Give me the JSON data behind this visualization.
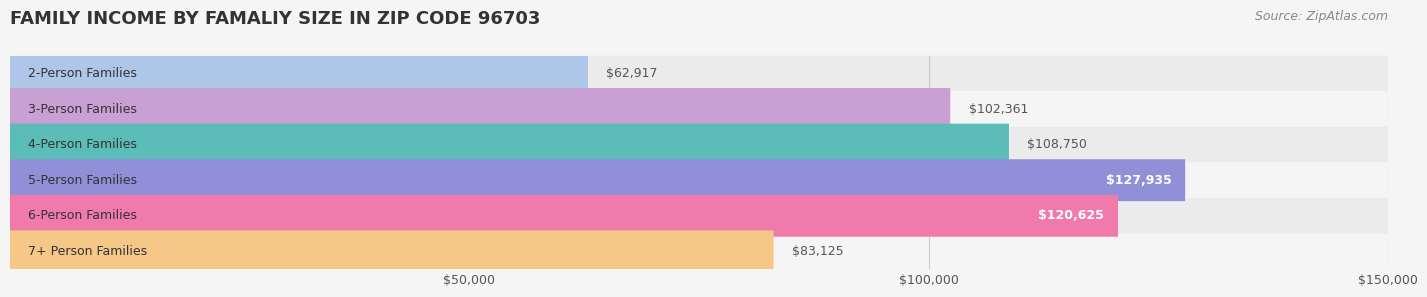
{
  "title": "FAMILY INCOME BY FAMALIY SIZE IN ZIP CODE 96703",
  "source": "Source: ZipAtlas.com",
  "categories": [
    "2-Person Families",
    "3-Person Families",
    "4-Person Families",
    "5-Person Families",
    "6-Person Families",
    "7+ Person Families"
  ],
  "values": [
    62917,
    102361,
    108750,
    127935,
    120625,
    83125
  ],
  "bar_colors": [
    "#aec6e8",
    "#c9a0d4",
    "#5bbcb8",
    "#9090d8",
    "#f07aaa",
    "#f5c888"
  ],
  "bar_label_colors": [
    "#555555",
    "#555555",
    "#555555",
    "#ffffff",
    "#ffffff",
    "#555555"
  ],
  "value_labels": [
    "$62,917",
    "$102,361",
    "$108,750",
    "$127,935",
    "$120,625",
    "$83,125"
  ],
  "xlim": [
    0,
    150000
  ],
  "xticks": [
    0,
    50000,
    100000,
    150000
  ],
  "xtick_labels": [
    "",
    "$50,000",
    "$100,000",
    "$150,000"
  ],
  "bg_color": "#f5f5f5",
  "row_bg_colors": [
    "#f0f0f0",
    "#e8e8e8"
  ],
  "title_fontsize": 13,
  "label_fontsize": 9,
  "value_fontsize": 9,
  "source_fontsize": 9
}
